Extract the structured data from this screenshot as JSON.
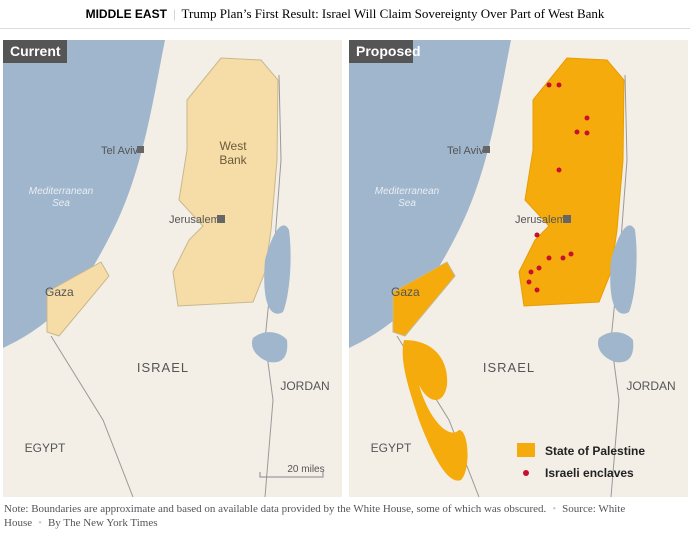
{
  "header": {
    "section": "MIDDLE EAST",
    "title": "Trump Plan’s First Result: Israel Will Claim Sovereignty Over Part of West Bank"
  },
  "panels": [
    {
      "tag": "Current",
      "labels": {
        "tel_aviv": "Tel Aviv",
        "west_bank": [
          "West",
          "Bank"
        ],
        "sea": [
          "Mediterranean",
          "Sea"
        ],
        "jerusalem": "Jerusalem",
        "gaza": "Gaza",
        "israel": "ISRAEL",
        "jordan": "JORDAN",
        "egypt": "EGYPT"
      },
      "scale": "20 miles"
    },
    {
      "tag": "Proposed",
      "labels": {
        "tel_aviv": "Tel Aviv",
        "sea": [
          "Mediterranean",
          "Sea"
        ],
        "jerusalem": "Jerusalem",
        "gaza": "Gaza",
        "israel": "ISRAEL",
        "jordan": "JORDAN",
        "egypt": "EGYPT"
      },
      "legend": [
        "State of Palestine",
        "Israeli enclaves"
      ]
    }
  ],
  "footer": {
    "note": "Note: Boundaries are approximate and based on available data provided by the White House, some of which was obscured.",
    "source": "Source: White House",
    "byline": "By The New York Times"
  }
}
